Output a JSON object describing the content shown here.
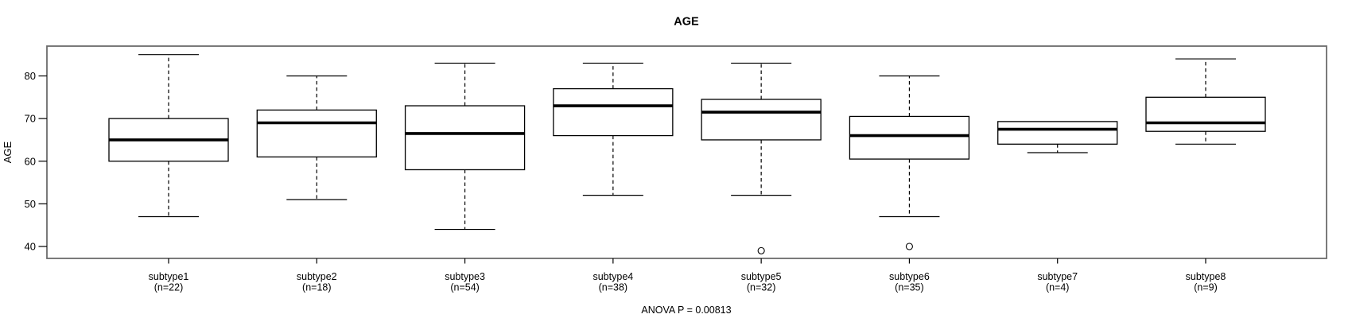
{
  "title": "AGE",
  "y_axis": {
    "label": "AGE",
    "ticks": [
      40,
      50,
      60,
      70,
      80
    ]
  },
  "footer": {
    "anova_label": "ANOVA P = 0.00813"
  },
  "colors": {
    "background": "#ffffff",
    "box_fill": "#ffffff",
    "box_stroke": "#000000",
    "median": "#000000",
    "whisker": "#000000",
    "frame": "#6b6b6b",
    "text": "#000000"
  },
  "chart_data": {
    "type": "boxplot",
    "title": "AGE",
    "xlabel": "",
    "ylabel": "AGE",
    "ylim": [
      37,
      87
    ],
    "yticks": [
      40,
      50,
      60,
      70,
      80
    ],
    "grid": false,
    "annotation": "ANOVA P = 0.00813",
    "groups": [
      {
        "label": "subtype1",
        "n": 22,
        "sublabel": "(n=22)",
        "min": 47,
        "q1": 60,
        "median": 65,
        "q3": 70,
        "max": 85,
        "outliers": []
      },
      {
        "label": "subtype2",
        "n": 18,
        "sublabel": "(n=18)",
        "min": 51,
        "q1": 61,
        "median": 69,
        "q3": 72,
        "max": 80,
        "outliers": []
      },
      {
        "label": "subtype3",
        "n": 54,
        "sublabel": "(n=54)",
        "min": 44,
        "q1": 58,
        "median": 66.5,
        "q3": 73,
        "max": 83,
        "outliers": []
      },
      {
        "label": "subtype4",
        "n": 38,
        "sublabel": "(n=38)",
        "min": 52,
        "q1": 66,
        "median": 73,
        "q3": 77,
        "max": 83,
        "outliers": []
      },
      {
        "label": "subtype5",
        "n": 32,
        "sublabel": "(n=32)",
        "min": 52,
        "q1": 65,
        "median": 71.5,
        "q3": 74.5,
        "max": 83,
        "outliers": [
          39
        ]
      },
      {
        "label": "subtype6",
        "n": 35,
        "sublabel": "(n=35)",
        "min": 47,
        "q1": 60.5,
        "median": 66,
        "q3": 70.5,
        "max": 80,
        "outliers": [
          40
        ]
      },
      {
        "label": "subtype7",
        "n": 4,
        "sublabel": "(n=4)",
        "min": 62,
        "q1": 64,
        "median": 67.5,
        "q3": 69.3,
        "max": 69,
        "outliers": []
      },
      {
        "label": "subtype8",
        "n": 9,
        "sublabel": "(n=9)",
        "min": 64,
        "q1": 67,
        "median": 69,
        "q3": 75,
        "max": 84,
        "outliers": []
      }
    ]
  }
}
